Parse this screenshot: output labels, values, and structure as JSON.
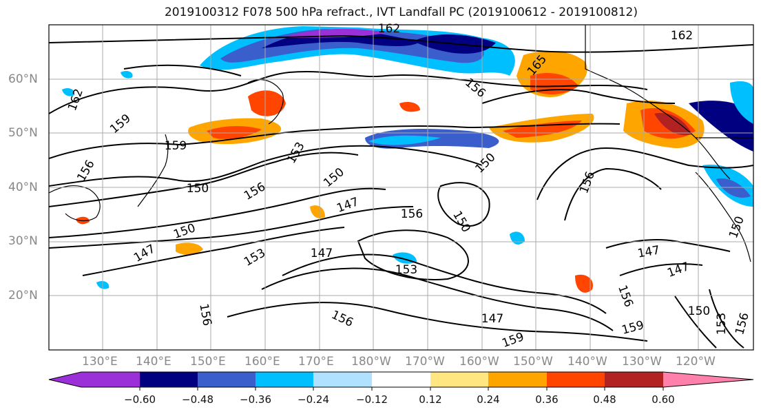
{
  "title": "2019100312 F078 500 hPa refract., IVT Landfall PC (2019100612 - 2019100812)",
  "lat_labels": [
    "60°N",
    "50°N",
    "40°N",
    "30°N",
    "20°N"
  ],
  "lon_labels": [
    "130°E",
    "140°E",
    "150°E",
    "160°E",
    "170°E",
    "180°W",
    "170°W",
    "160°W",
    "150°W",
    "140°W",
    "130°W",
    "120°W"
  ],
  "colorbar": {
    "ticks": [
      "−0.60",
      "−0.48",
      "−0.36",
      "−0.24",
      "−0.12",
      "0.12",
      "0.24",
      "0.36",
      "0.48",
      "0.60"
    ],
    "colors": [
      "#9b30d9",
      "#000080",
      "#3a5fcd",
      "#00bfff",
      "#b0e2ff",
      "#ffffff",
      "#ffe680",
      "#ffa500",
      "#ff4500",
      "#b22222",
      "#ff80aa"
    ]
  },
  "contour_labels": [
    "162",
    "165",
    "162",
    "162",
    "156",
    "159",
    "159",
    "156",
    "150",
    "153",
    "156",
    "150",
    "147",
    "150",
    "153",
    "147",
    "156",
    "150",
    "153",
    "147",
    "150",
    "156",
    "156",
    "147",
    "159",
    "147",
    "150",
    "147",
    "150",
    "153",
    "156",
    "159",
    "156",
    "156"
  ],
  "land_color": "#ffffff",
  "grid_color": "#aaaaaa"
}
